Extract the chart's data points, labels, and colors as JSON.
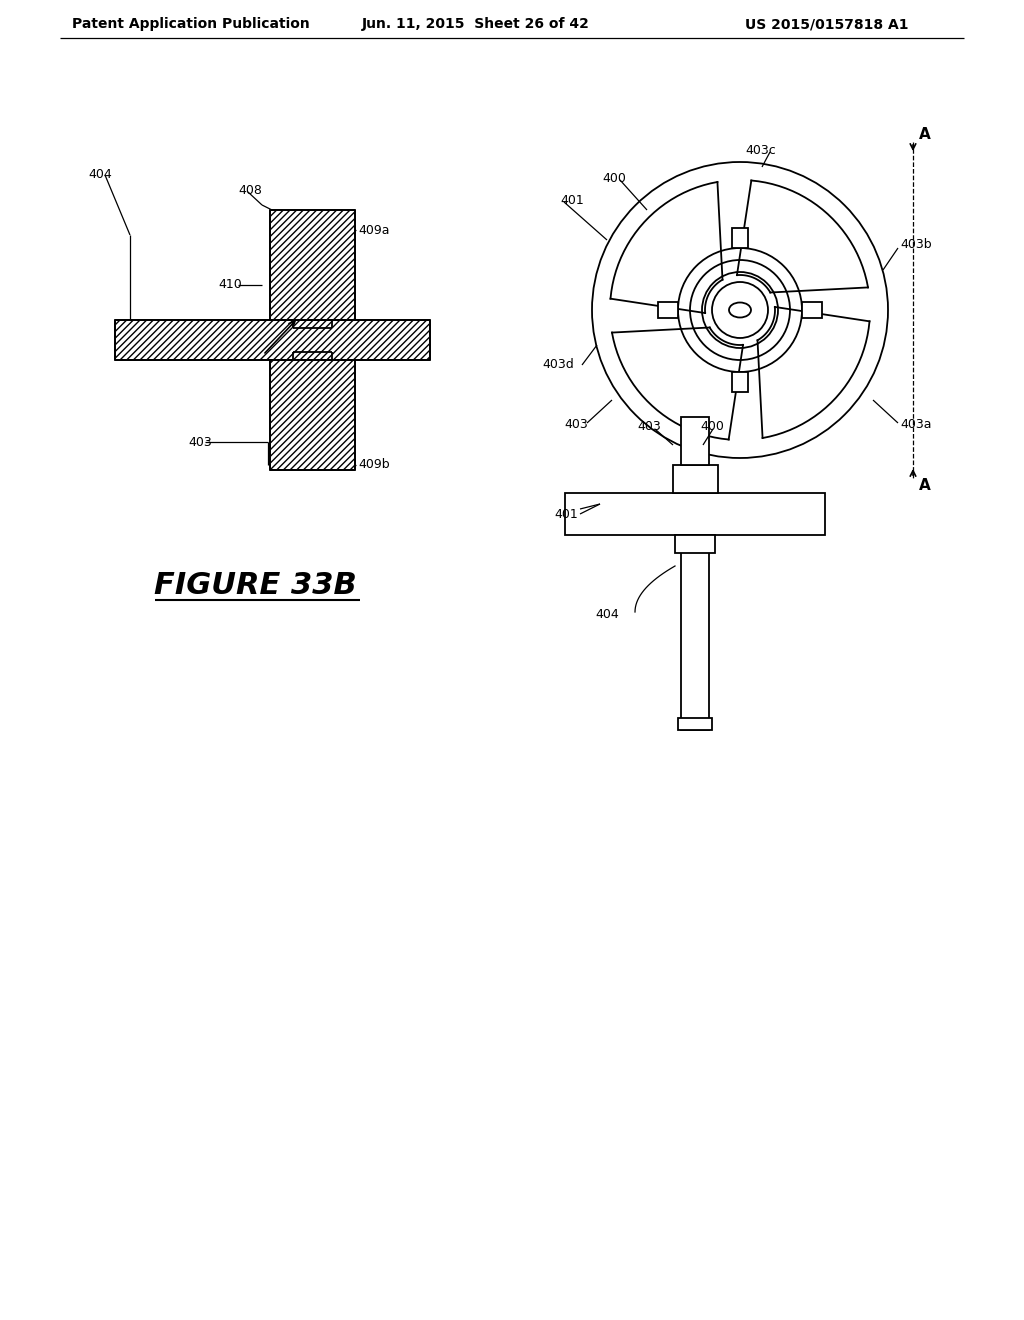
{
  "background_color": "#ffffff",
  "header_text": "Patent Application Publication",
  "header_date": "Jun. 11, 2015  Sheet 26 of 42",
  "header_patent": "US 2015/0157818 A1",
  "figure_label": "FIGURE 33B",
  "line_color": "#000000",
  "lw": 1.3
}
